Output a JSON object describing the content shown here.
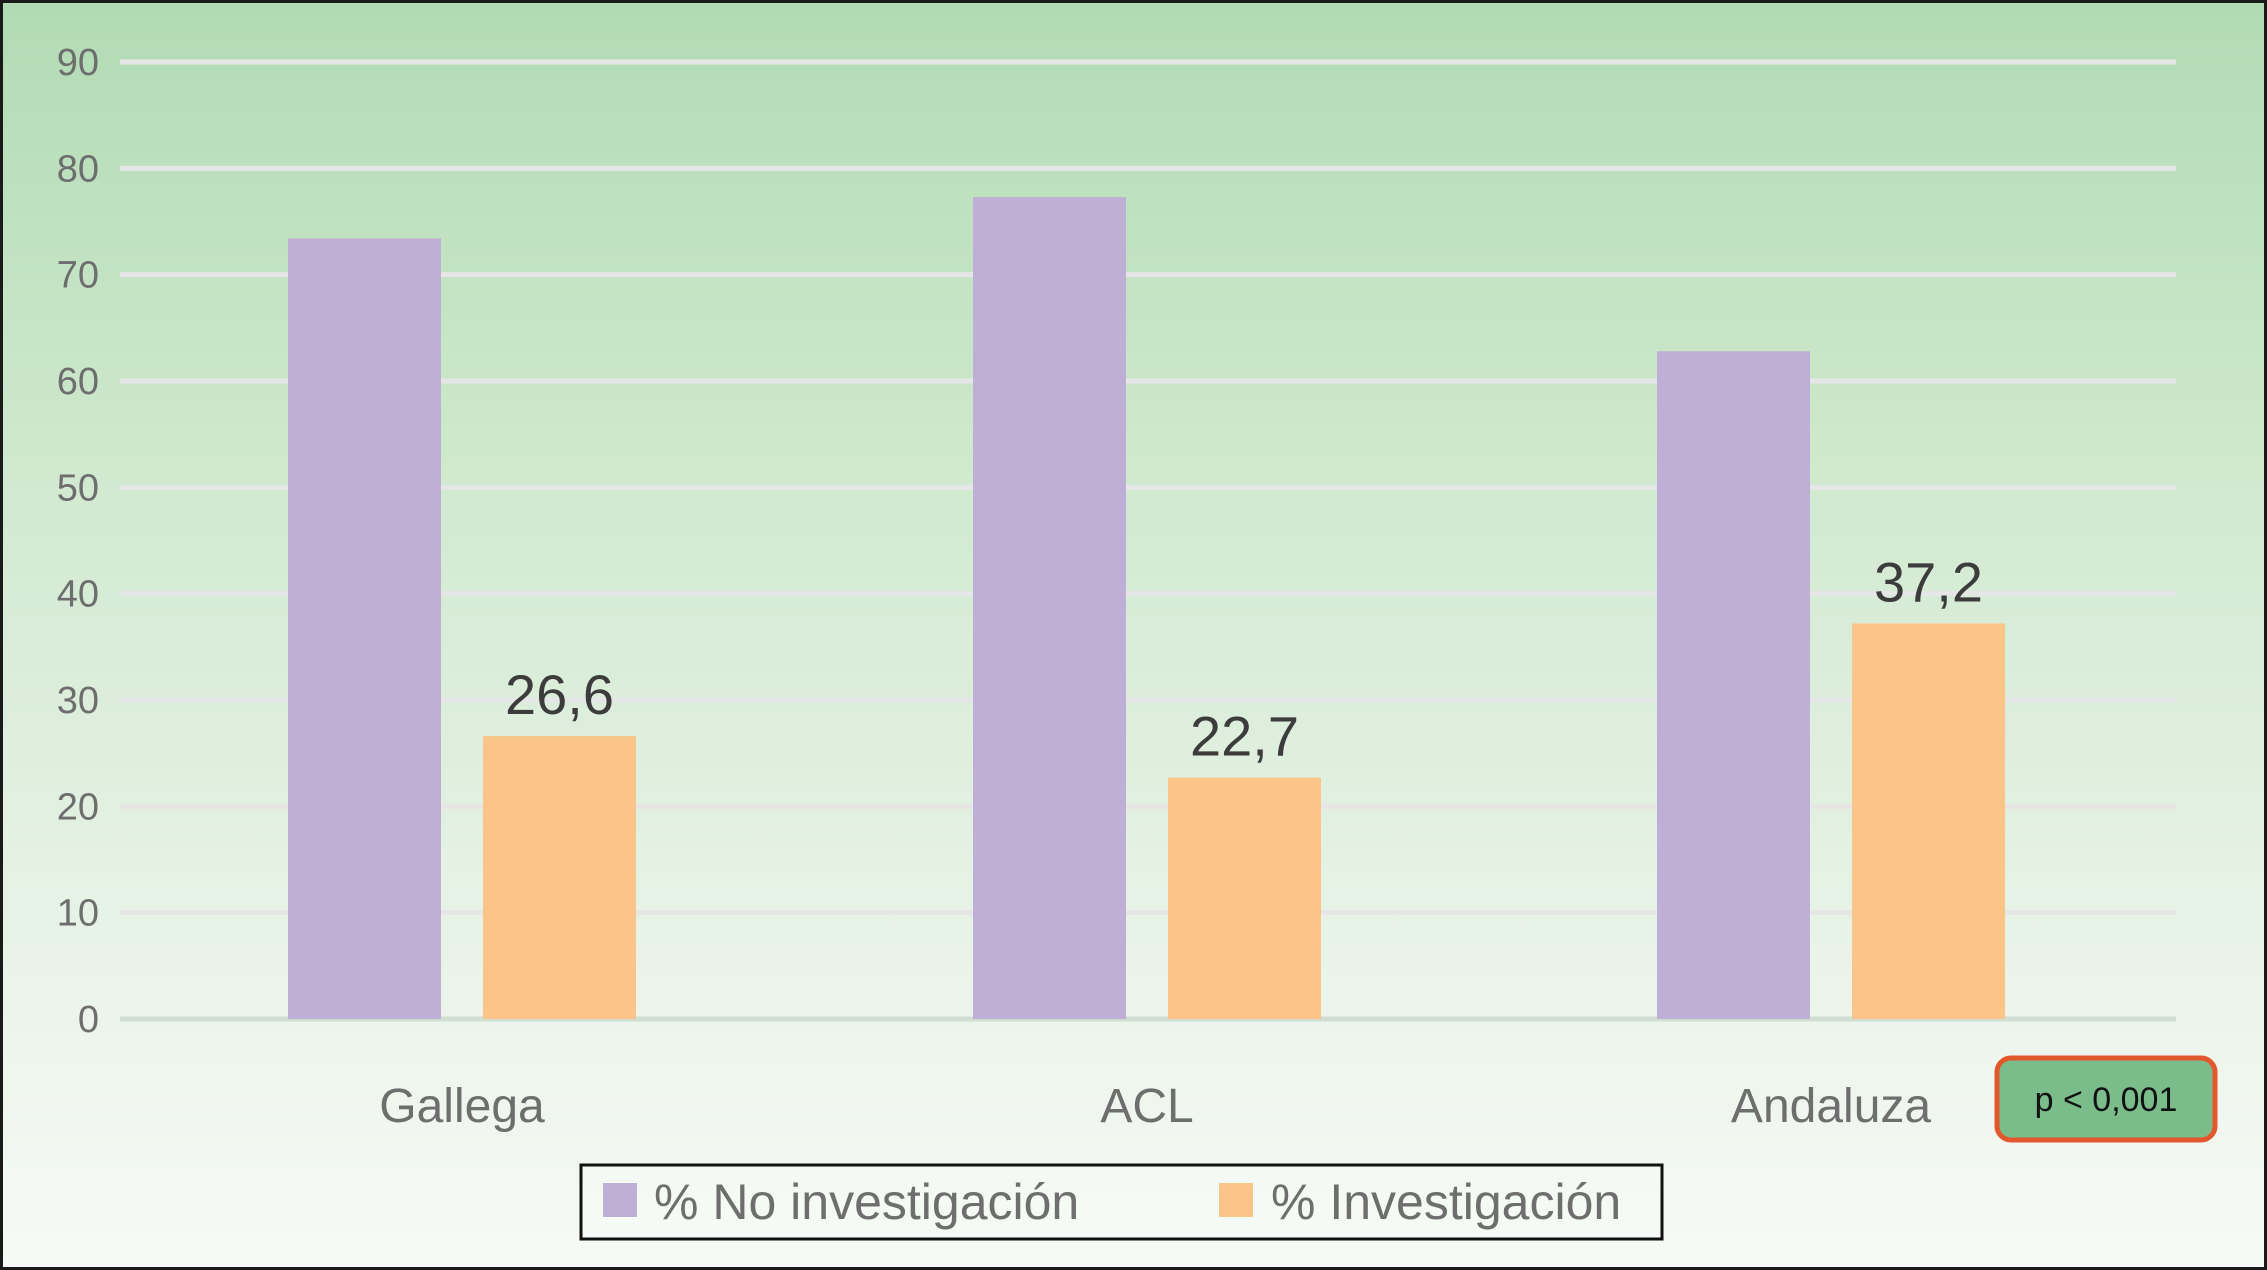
{
  "chart_data": {
    "type": "bar",
    "title": "",
    "xlabel": "",
    "ylabel": "",
    "categories": [
      "Gallega",
      "ACL",
      "Andaluza"
    ],
    "series": [
      {
        "name": "% No investigación",
        "values": [
          73.4,
          77.3,
          62.8
        ],
        "color": "#bfaed5"
      },
      {
        "name": "% Investigación",
        "values": [
          26.6,
          22.7,
          37.2
        ],
        "color": "#fbc488"
      }
    ],
    "data_labels": [
      "26,6",
      "22,7",
      "37,2"
    ],
    "ylim": [
      0,
      90
    ],
    "yticks": [
      0,
      10,
      20,
      30,
      40,
      50,
      60,
      70,
      80,
      90
    ],
    "grid": true,
    "legend": "bottom-center",
    "annotation": {
      "text": "p < 0,001",
      "fill": "#7bbd8a",
      "border": "#e2572b"
    }
  }
}
